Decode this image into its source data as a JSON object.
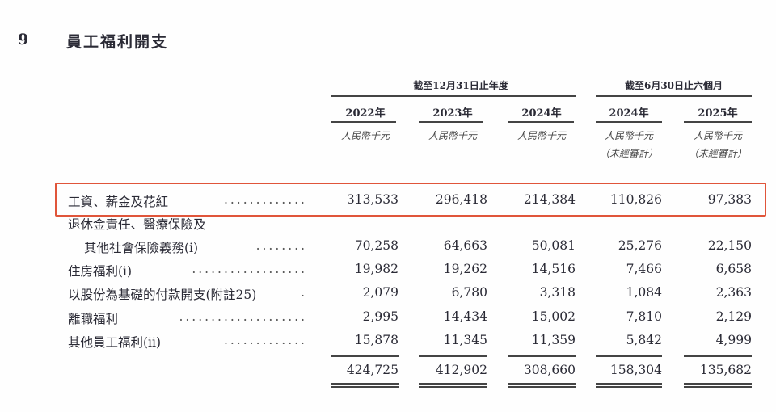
{
  "section": {
    "number": "9",
    "title": "員工福利開支"
  },
  "header": {
    "group_annual": "截至12月31日止年度",
    "group_interim": "截至6月30日止六個月",
    "years": [
      "2022年",
      "2023年",
      "2024年",
      "2024年",
      "2025年"
    ],
    "unit": "人民幣千元",
    "unaudited": "（未經審計）"
  },
  "rows": [
    {
      "label": "工資、薪金及花紅",
      "values": [
        "313,533",
        "296,418",
        "214,384",
        "110,826",
        "97,383"
      ],
      "highlighted": true
    },
    {
      "label": "退休金責任、醫療保險及",
      "values": []
    },
    {
      "label": "其他社會保險義務(i)",
      "values": [
        "70,258",
        "64,663",
        "50,081",
        "25,276",
        "22,150"
      ]
    },
    {
      "label": "住房福利(i)",
      "values": [
        "19,982",
        "19,262",
        "14,516",
        "7,466",
        "6,658"
      ]
    },
    {
      "label": "以股份為基礎的付款開支(附註25)",
      "values": [
        "2,079",
        "6,780",
        "3,318",
        "1,084",
        "2,363"
      ]
    },
    {
      "label": "離職福利",
      "values": [
        "2,995",
        "14,434",
        "15,002",
        "7,810",
        "2,129"
      ]
    },
    {
      "label": "其他員工福利(ii)",
      "values": [
        "15,878",
        "11,345",
        "11,359",
        "5,842",
        "4,999"
      ]
    }
  ],
  "totals": [
    "424,725",
    "412,902",
    "308,660",
    "158,304",
    "135,682"
  ],
  "highlight_color": "#e0553a"
}
